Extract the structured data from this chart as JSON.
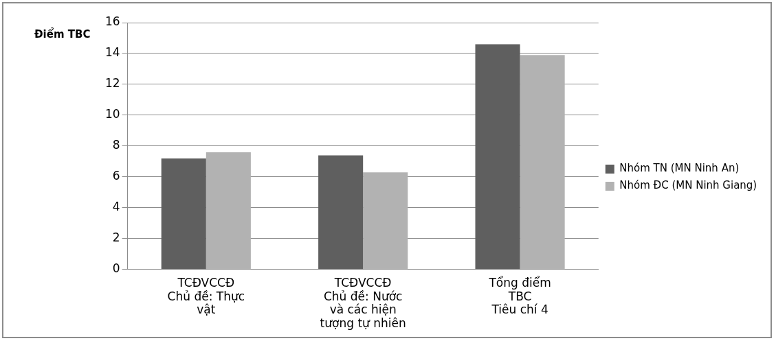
{
  "chart_data": {
    "type": "bar",
    "ylabel": "Điểm TBC",
    "categories": [
      "TCĐVCCĐ\nChủ đề: Thực\nvật",
      "TCĐVCCĐ\nChủ đề: Nước\nvà các hiện\ntượng tự nhiên",
      "Tổng điểm\nTBC\nTiêu chí 4"
    ],
    "series": [
      {
        "name": "Nhóm TN (MN Ninh An)",
        "color": "#5f5f5f",
        "values": [
          7.2,
          7.4,
          14.6
        ]
      },
      {
        "name": "Nhóm ĐC (MN Ninh Giang)",
        "color": "#b2b2b2",
        "values": [
          7.6,
          6.3,
          13.9
        ]
      }
    ],
    "ylim": [
      0,
      16
    ],
    "yticks": [
      0,
      2,
      4,
      6,
      8,
      10,
      12,
      14,
      16
    ],
    "grid": "y",
    "legend": "right"
  }
}
